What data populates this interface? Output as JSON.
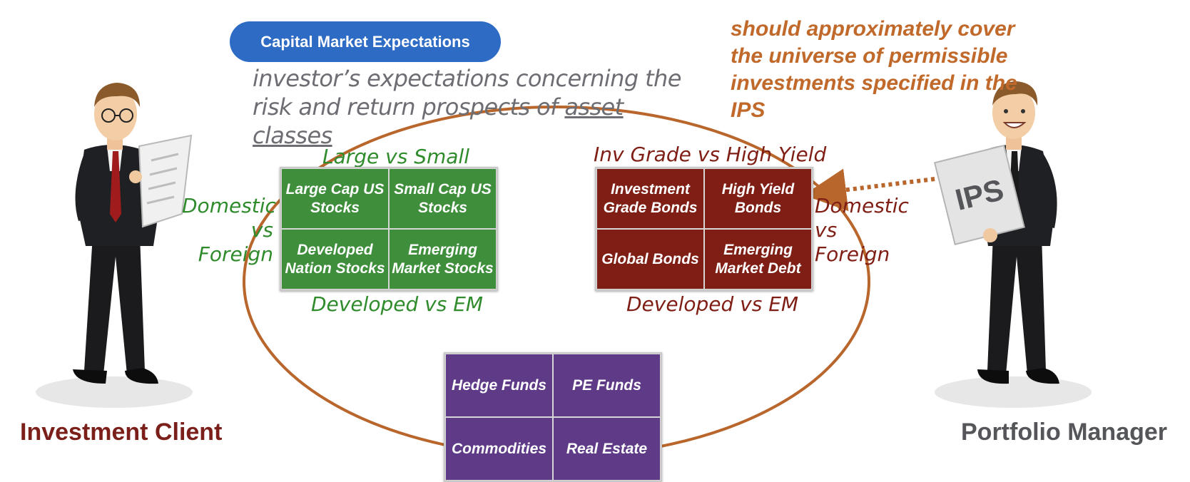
{
  "header": {
    "title": "Capital Market Expectations"
  },
  "definition": {
    "before": "investor’s expectations concerning the risk and return prospects of ",
    "underlined": "asset classes"
  },
  "note": "should approximately cover the universe of permissible investments specified in the IPS",
  "equities": {
    "top_label": "Large vs Small",
    "side_label": [
      "Domestic",
      "vs",
      "Foreign"
    ],
    "bottom_label": "Developed vs EM",
    "cells": [
      "Large Cap US Stocks",
      "Small Cap US Stocks",
      "Developed Nation Stocks",
      "Emerging Market Stocks"
    ]
  },
  "bonds": {
    "top_label": "Inv Grade vs High Yield",
    "side_label": [
      "Domestic",
      "vs",
      "Foreign"
    ],
    "bottom_label": "Developed vs EM",
    "cells": [
      "Investment Grade Bonds",
      "High Yield Bonds",
      "Global Bonds",
      "Emerging Market Debt"
    ]
  },
  "alternatives": {
    "cells": [
      "Hedge Funds",
      "PE Funds",
      "Commodities",
      "Real Estate"
    ]
  },
  "client": {
    "label": "Investment Client"
  },
  "manager": {
    "label": "Portfolio Manager",
    "document_text": "IPS"
  },
  "colors": {
    "pill": "#2d6bc4",
    "note": "#c0692a",
    "ellipse": "#b9662c",
    "equities": "#3e8e3b",
    "bonds": "#7f1e14",
    "alternatives": "#5e3a87",
    "client_label": "#7b1f1a",
    "manager_label": "#55565a"
  }
}
